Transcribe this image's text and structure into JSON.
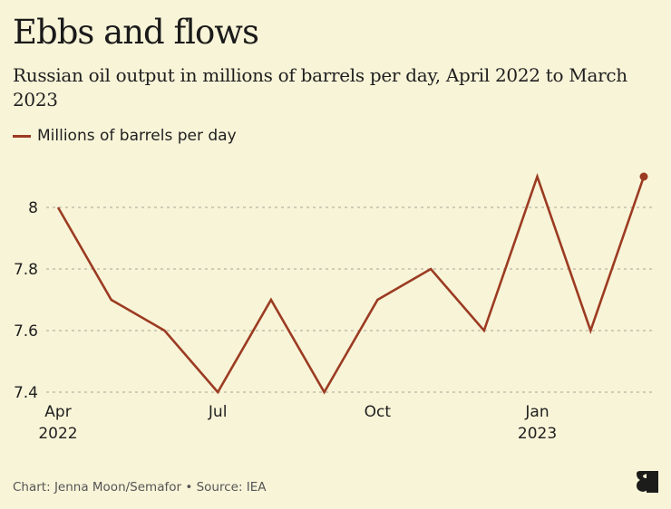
{
  "header": {
    "title": "Ebbs and flows",
    "subtitle": "Russian oil output in millions of barrels per day, April 2022 to March 2023"
  },
  "legend": {
    "label": "Millions of barrels per day"
  },
  "footer": {
    "credit": "Chart: Jenna Moon/Semafor • Source: IEA"
  },
  "brand": {
    "logo_icon": "semafor-logo-icon"
  },
  "colors": {
    "line": "#9b3b22",
    "background": "#f8f4d8",
    "grid": "#a9a596"
  },
  "chart_data": {
    "type": "line",
    "title": "Ebbs and flows",
    "subtitle": "Russian oil output in millions of barrels per day, April 2022 to March 2023",
    "xlabel": "",
    "ylabel": "",
    "x": [
      "Apr 2022",
      "May 2022",
      "Jun 2022",
      "Jul 2022",
      "Aug 2022",
      "Sep 2022",
      "Oct 2022",
      "Nov 2022",
      "Dec 2022",
      "Jan 2023",
      "Feb 2023",
      "Mar 2023"
    ],
    "x_ticks": [
      {
        "index": 0,
        "label": "Apr",
        "sublabel": "2022"
      },
      {
        "index": 3,
        "label": "Jul",
        "sublabel": ""
      },
      {
        "index": 6,
        "label": "Oct",
        "sublabel": ""
      },
      {
        "index": 9,
        "label": "Jan",
        "sublabel": "2023"
      }
    ],
    "y_ticks": [
      "7.4",
      "7.6",
      "7.8",
      "8"
    ],
    "ylim": [
      7.4,
      8.1
    ],
    "grid": true,
    "legend_position": "top-left",
    "series": [
      {
        "name": "Millions of barrels per day",
        "values": [
          8.0,
          7.7,
          7.6,
          7.4,
          7.7,
          7.4,
          7.7,
          7.8,
          7.6,
          8.1,
          7.6,
          8.1
        ]
      }
    ],
    "annotations": [
      "end-point marker on Mar 2023"
    ]
  }
}
